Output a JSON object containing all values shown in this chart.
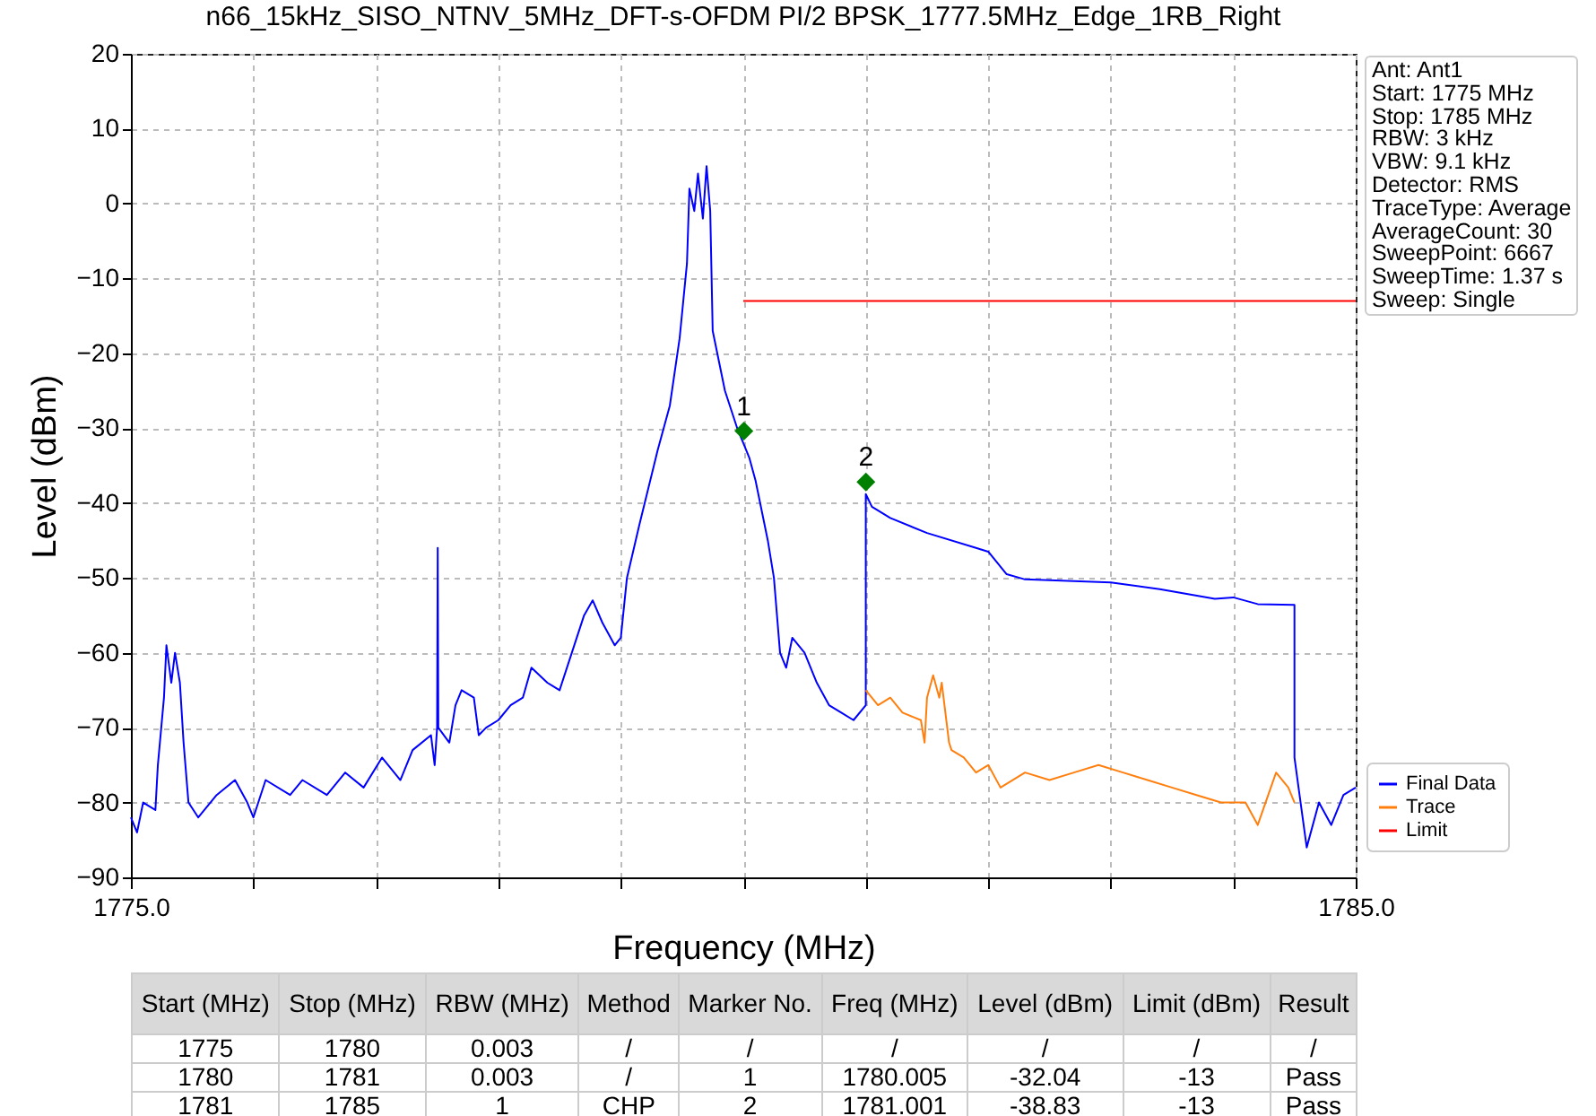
{
  "chart_data": {
    "type": "line",
    "title": "n66_15kHz_SISO_NTNV_5MHz_DFT-s-OFDM PI/2 BPSK_1777.5MHz_Edge_1RB_Right",
    "xlabel": "Frequency (MHz)",
    "ylabel": "Level (dBm)",
    "xlim": [
      1775,
      1785
    ],
    "xticks": [
      {
        "value": 1775,
        "label": "1775.0"
      },
      {
        "value": 1776,
        "label": null
      },
      {
        "value": 1777,
        "label": null
      },
      {
        "value": 1778,
        "label": null
      },
      {
        "value": 1779,
        "label": null
      },
      {
        "value": 1780,
        "label": null
      },
      {
        "value": 1781,
        "label": null
      },
      {
        "value": 1782,
        "label": null
      },
      {
        "value": 1783,
        "label": null
      },
      {
        "value": 1784,
        "label": null
      },
      {
        "value": 1785,
        "label": "1785.0"
      }
    ],
    "ylim": [
      -90,
      20
    ],
    "yticks": [
      -90,
      -80,
      -70,
      -60,
      -50,
      -40,
      -30,
      -20,
      -10,
      0,
      10,
      20
    ],
    "grid": true,
    "legend": "bottom right",
    "marker": "none",
    "series": [
      {
        "name": "Final Data",
        "color": "#0000ff",
        "x": [
          1775.0,
          1775.05,
          1775.1,
          1775.2,
          1775.22,
          1775.27,
          1775.29,
          1775.33,
          1775.36,
          1775.4,
          1775.43,
          1775.47,
          1775.55,
          1775.7,
          1775.85,
          1775.95,
          1776.0,
          1776.1,
          1776.3,
          1776.4,
          1776.6,
          1776.75,
          1776.9,
          1777.05,
          1777.2,
          1777.3,
          1777.45,
          1777.48,
          1777.5,
          1777.505,
          1777.51,
          1777.6,
          1777.65,
          1777.7,
          1777.8,
          1777.84,
          1777.9,
          1778.0,
          1778.1,
          1778.2,
          1778.27,
          1778.4,
          1778.5,
          1778.6,
          1778.7,
          1778.77,
          1778.85,
          1778.95,
          1779.0,
          1779.05,
          1779.15,
          1779.3,
          1779.4,
          1779.48,
          1779.54,
          1779.56,
          1779.6,
          1779.63,
          1779.67,
          1779.7,
          1779.73,
          1779.75,
          1779.85,
          1779.95,
          1780.0,
          1780.05,
          1780.1,
          1780.2,
          1780.25,
          1780.28,
          1780.3,
          1780.35,
          1780.4,
          1780.5,
          1780.6,
          1780.7,
          1780.8,
          1780.9,
          1781.0,
          1781.0,
          1781.05,
          1781.2,
          1781.5,
          1781.9,
          1782.0,
          1782.15,
          1782.3,
          1782.8,
          1783.0,
          1783.4,
          1783.85,
          1784.0,
          1784.2,
          1784.5,
          1784.5,
          1784.55,
          1784.6,
          1784.7,
          1784.8,
          1784.9,
          1785.0
        ],
        "values": [
          -82,
          -84,
          -80,
          -81,
          -75,
          -66,
          -59,
          -64,
          -60,
          -64,
          -72,
          -80,
          -82,
          -79,
          -77,
          -80,
          -82,
          -77,
          -79,
          -77,
          -79,
          -76,
          -78,
          -74,
          -77,
          -73,
          -71,
          -75,
          -70,
          -46,
          -70,
          -72,
          -67,
          -65,
          -66,
          -71,
          -70,
          -69,
          -67,
          -66,
          -62,
          -64,
          -65,
          -60,
          -55,
          -53,
          -56,
          -59,
          -58,
          -50,
          -43,
          -33,
          -27,
          -18,
          -8,
          2,
          -1,
          4,
          -2,
          5,
          -1,
          -17,
          -25,
          -30,
          -32,
          -34,
          -37,
          -45,
          -50,
          -56,
          -60,
          -62,
          -58,
          -60,
          -64,
          -67,
          -68,
          -69,
          -67,
          -38.8,
          -40.5,
          -42,
          -44,
          -46,
          -46.5,
          -49.5,
          -50.2,
          -50.5,
          -50.6,
          -51.5,
          -52.8,
          -52.6,
          -53.5,
          -53.6,
          -74,
          -80,
          -86,
          -80,
          -83,
          -79,
          -78
        ]
      },
      {
        "name": "Trace",
        "color": "#ff7f0e",
        "x": [
          1781.0,
          1781.1,
          1781.2,
          1781.3,
          1781.45,
          1781.48,
          1781.5,
          1781.55,
          1781.6,
          1781.62,
          1781.68,
          1781.7,
          1781.8,
          1781.9,
          1782.0,
          1782.1,
          1782.3,
          1782.5,
          1782.7,
          1782.9,
          1783.1,
          1783.3,
          1783.5,
          1783.7,
          1783.9,
          1784.1,
          1784.2,
          1784.35,
          1784.45,
          1784.5
        ],
        "values": [
          -65,
          -67,
          -66,
          -68,
          -69,
          -72,
          -66,
          -63,
          -66,
          -64,
          -72,
          -73,
          -74,
          -76,
          -75,
          -78,
          -76,
          -77,
          -76,
          -75,
          -76,
          -77,
          -78,
          -79,
          -80,
          -80,
          -83,
          -76,
          -78,
          -80
        ]
      },
      {
        "name": "Limit",
        "color": "#ff0000",
        "x": [
          1780,
          1785
        ],
        "values": [
          -13,
          -13
        ]
      },
      {
        "color": "#008000",
        "type": "scatter",
        "marker": "diamond",
        "x": [
          1780.005,
          1781.001
        ],
        "values": [
          -30.4,
          -37.2
        ]
      }
    ],
    "annotations": [
      {
        "text": "1",
        "x": 1780.005,
        "y": -30.4
      },
      {
        "text": "2",
        "x": 1781.001,
        "y": -37.2
      },
      "Ant: Ant1",
      "Start: 1775 MHz",
      "Stop: 1785 MHz",
      "RBW: 3 kHz",
      "VBW: 9.1 kHz",
      "Detector: RMS",
      "TraceType: Average",
      "AverageCount: 30",
      "SweepPoint: 6667",
      "SweepTime: 1.37 s",
      "Sweep: Single",
      "Start (MHz)",
      "Stop (MHz)",
      "RBW (MHz)",
      "Method",
      "Marker No.",
      "Freq (MHz)",
      "Level (dBm)",
      "Limit (dBm)",
      "Result",
      "1775",
      "1780",
      "0.003",
      "/",
      "/",
      "/",
      "/",
      "/",
      "/",
      "1780",
      "1781",
      "0.003",
      "/",
      "1",
      "1780.005",
      "-32.04",
      "-13",
      "Pass",
      "1781",
      "1785",
      "1",
      "CHP",
      "2",
      "1781.001",
      "-38.83",
      "-13",
      "Pass"
    ]
  }
}
